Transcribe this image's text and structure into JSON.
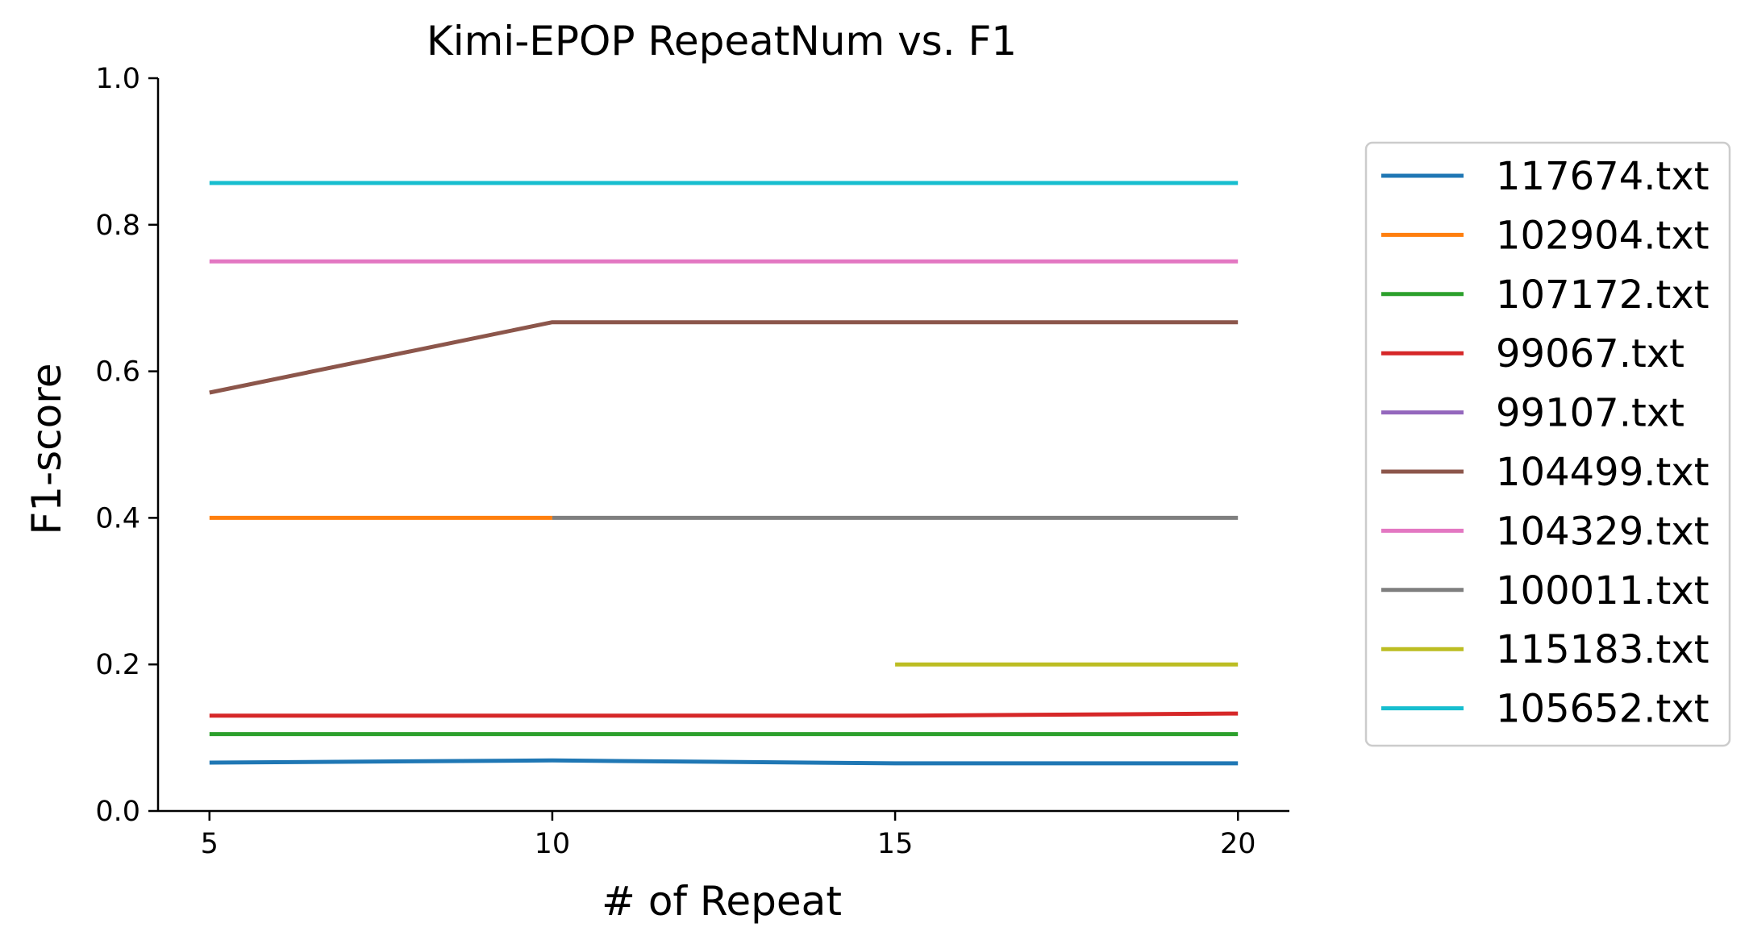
{
  "chart_data": {
    "type": "line",
    "title": "Kimi-EPOP RepeatNum vs. F1",
    "xlabel": "# of Repeat",
    "ylabel": "F1-score",
    "xlim": [
      4.25,
      20.75
    ],
    "ylim": [
      0.0,
      1.0
    ],
    "xticks": [
      5,
      10,
      15,
      20
    ],
    "yticks": [
      0.0,
      0.2,
      0.4,
      0.6,
      0.8,
      1.0
    ],
    "xtick_labels": [
      "5",
      "10",
      "15",
      "20"
    ],
    "ytick_labels": [
      "0.0",
      "0.2",
      "0.4",
      "0.6",
      "0.8",
      "1.0"
    ],
    "grid": false,
    "legend_position": "right",
    "series": [
      {
        "name": "117674.txt",
        "color": "#1f77b4",
        "x": [
          5,
          10,
          15,
          20
        ],
        "y": [
          0.066,
          0.069,
          0.065,
          0.065
        ]
      },
      {
        "name": "102904.txt",
        "color": "#ff7f0e",
        "x": [
          5,
          10
        ],
        "y": [
          0.4,
          0.4
        ]
      },
      {
        "name": "107172.txt",
        "color": "#2ca02c",
        "x": [
          5,
          10,
          15,
          20
        ],
        "y": [
          0.105,
          0.105,
          0.105,
          0.105
        ]
      },
      {
        "name": "99067.txt",
        "color": "#d62728",
        "x": [
          5,
          10,
          15,
          20
        ],
        "y": [
          0.13,
          0.13,
          0.13,
          0.133
        ]
      },
      {
        "name": "99107.txt",
        "color": "#9467bd",
        "x": [],
        "y": []
      },
      {
        "name": "104499.txt",
        "color": "#8c564b",
        "x": [
          5,
          10,
          15,
          20
        ],
        "y": [
          0.571,
          0.667,
          0.667,
          0.667
        ]
      },
      {
        "name": "104329.txt",
        "color": "#e377c2",
        "x": [
          5,
          10,
          15,
          20
        ],
        "y": [
          0.75,
          0.75,
          0.75,
          0.75
        ]
      },
      {
        "name": "100011.txt",
        "color": "#7f7f7f",
        "x": [
          10,
          15,
          20
        ],
        "y": [
          0.4,
          0.4,
          0.4
        ]
      },
      {
        "name": "115183.txt",
        "color": "#bcbd22",
        "x": [
          15,
          20
        ],
        "y": [
          0.2,
          0.2
        ]
      },
      {
        "name": "105652.txt",
        "color": "#17becf",
        "x": [
          5,
          10,
          15,
          20
        ],
        "y": [
          0.857,
          0.857,
          0.857,
          0.857
        ]
      }
    ]
  }
}
